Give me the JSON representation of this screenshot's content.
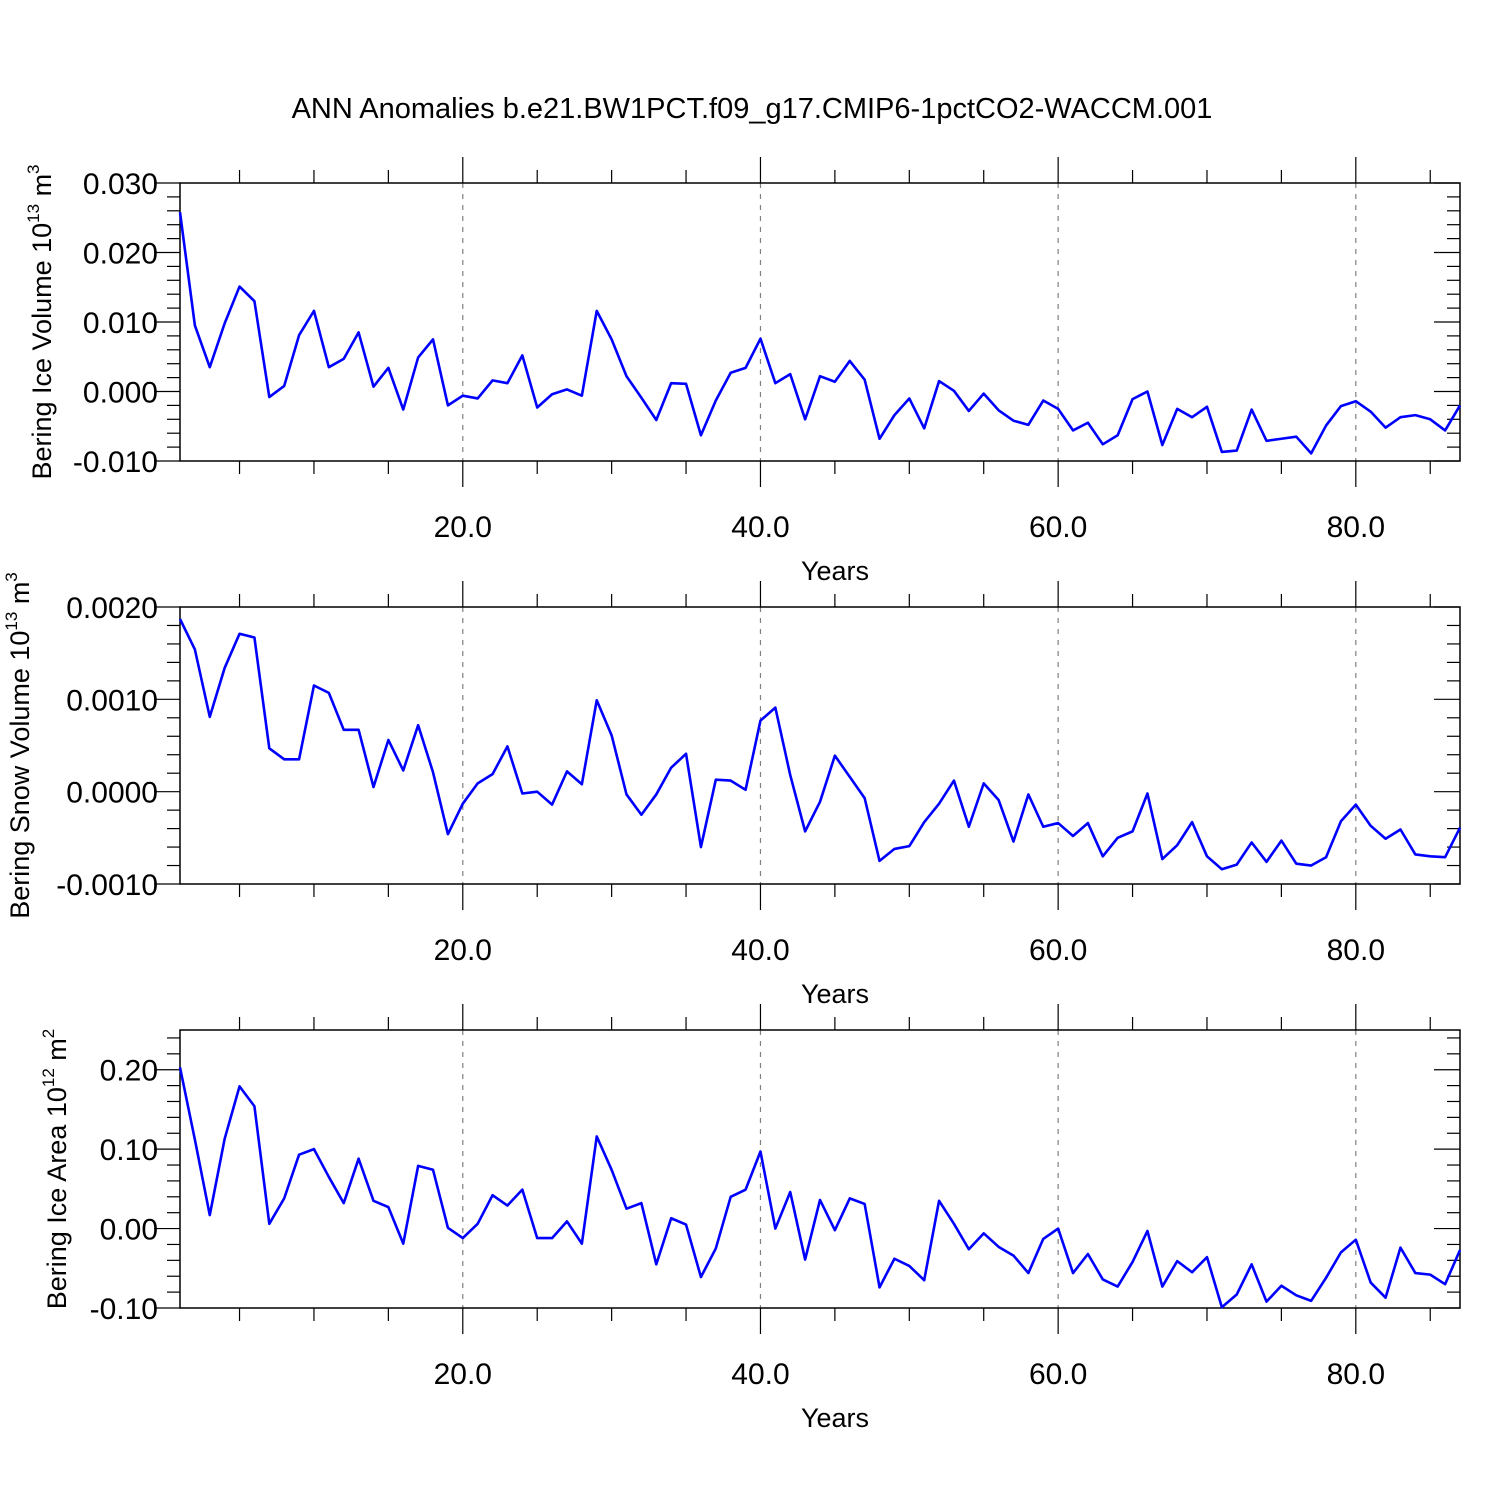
{
  "title": "ANN Anomalies b.e21.BW1PCT.f09_g17.CMIP6-1pctCO2-WACCM.001",
  "colors": {
    "line": "#0000ff",
    "axis": "#000000",
    "grid": "#808080"
  },
  "chart_data": [
    {
      "type": "line",
      "ylabel": {
        "text": "Bering Ice Volume 10",
        "sup": "13",
        "unit": " m",
        "unit_sup": "3"
      },
      "xlabel": "Years",
      "xlim": [
        1,
        87
      ],
      "ylim": [
        -0.01,
        0.03
      ],
      "grid": "vertical dashed at major x ticks",
      "x_ticks": [
        20,
        40,
        60,
        80
      ],
      "x_tick_labels": [
        "20.0",
        "40.0",
        "60.0",
        "80.0"
      ],
      "y_ticks": [
        -0.01,
        0,
        0.01,
        0.02,
        0.03
      ],
      "y_tick_labels": [
        "-0.010",
        "0.000",
        "0.010",
        "0.020",
        "0.030"
      ],
      "x_start": 1,
      "values": [
        0.0258,
        0.0095,
        0.0035,
        0.0098,
        0.0151,
        0.013,
        -0.0008,
        0.0008,
        0.0081,
        0.0116,
        0.0035,
        0.0047,
        0.0085,
        0.0007,
        0.0034,
        -0.0026,
        0.0049,
        0.0075,
        -0.002,
        -0.0006,
        -0.001,
        0.0016,
        0.0012,
        0.0052,
        -0.0023,
        -0.0004,
        0.0003,
        -0.0006,
        0.0116,
        0.0075,
        0.0022,
        -0.0009,
        -0.0041,
        0.0012,
        0.0011,
        -0.0063,
        -0.0013,
        0.0027,
        0.0034,
        0.0076,
        0.0012,
        0.0025,
        -0.004,
        0.0022,
        0.0014,
        0.0044,
        0.0017,
        -0.0068,
        -0.0034,
        -0.001,
        -0.0053,
        0.0015,
        0.0001,
        -0.0028,
        -0.0003,
        -0.0027,
        -0.0042,
        -0.0048,
        -0.0013,
        -0.0025,
        -0.0056,
        -0.0045,
        -0.0076,
        -0.0063,
        -0.0011,
        0.0,
        -0.0077,
        -0.0025,
        -0.0037,
        -0.0022,
        -0.0087,
        -0.0085,
        -0.0026,
        -0.0071,
        -0.0068,
        -0.0065,
        -0.0089,
        -0.0049,
        -0.0021,
        -0.0014,
        -0.0029,
        -0.0052,
        -0.0037,
        -0.0034,
        -0.004,
        -0.0056,
        -0.002
      ]
    },
    {
      "type": "line",
      "ylabel": {
        "text": "Bering Snow Volume 10",
        "sup": "13",
        "unit": " m",
        "unit_sup": "3"
      },
      "xlabel": "Years",
      "xlim": [
        1,
        87
      ],
      "ylim": [
        -0.001,
        0.002
      ],
      "grid": "vertical dashed at major x ticks",
      "x_ticks": [
        20,
        40,
        60,
        80
      ],
      "x_tick_labels": [
        "20.0",
        "40.0",
        "60.0",
        "80.0"
      ],
      "y_ticks": [
        -0.001,
        0,
        0.001,
        0.002
      ],
      "y_tick_labels": [
        "-0.0010",
        "0.0000",
        "0.0010",
        "0.0020"
      ],
      "x_start": 1,
      "values": [
        0.00187,
        0.00154,
        0.00081,
        0.00134,
        0.00171,
        0.00167,
        0.00047,
        0.00035,
        0.00035,
        0.00115,
        0.00107,
        0.00067,
        0.00067,
        5e-05,
        0.00056,
        0.00023,
        0.00072,
        0.00021,
        -0.00046,
        -0.00013,
        9e-05,
        0.00019,
        0.00049,
        -2e-05,
        0.0,
        -0.00014,
        0.00022,
        8e-05,
        0.00099,
        0.00061,
        -3e-05,
        -0.00025,
        -3e-05,
        0.00026,
        0.00041,
        -0.0006,
        0.00013,
        0.00012,
        2e-05,
        0.00077,
        0.00091,
        0.00018,
        -0.00043,
        -0.00011,
        0.00039,
        0.00016,
        -7e-05,
        -0.00075,
        -0.00062,
        -0.00059,
        -0.00033,
        -0.00013,
        0.00012,
        -0.00038,
        9e-05,
        -9e-05,
        -0.00054,
        -3e-05,
        -0.00038,
        -0.00034,
        -0.00048,
        -0.00034,
        -0.0007,
        -0.0005,
        -0.00043,
        -2e-05,
        -0.00073,
        -0.00058,
        -0.00033,
        -0.0007,
        -0.00084,
        -0.00079,
        -0.00055,
        -0.00076,
        -0.00053,
        -0.00078,
        -0.0008,
        -0.00071,
        -0.00032,
        -0.00014,
        -0.00037,
        -0.00051,
        -0.00041,
        -0.00068,
        -0.0007,
        -0.00071,
        -0.00039
      ]
    },
    {
      "type": "line",
      "ylabel": {
        "text": "Bering Ice Area 10",
        "sup": "12",
        "unit": " m",
        "unit_sup": "2"
      },
      "xlabel": "Years",
      "xlim": [
        1,
        87
      ],
      "ylim": [
        -0.1,
        0.25
      ],
      "grid": "vertical dashed at major x ticks",
      "x_ticks": [
        20,
        40,
        60,
        80
      ],
      "x_tick_labels": [
        "20.0",
        "40.0",
        "60.0",
        "80.0"
      ],
      "y_ticks": [
        -0.1,
        0,
        0.1,
        0.2
      ],
      "y_tick_labels": [
        "-0.10",
        "0.00",
        "0.10",
        "0.20"
      ],
      "x_start": 1,
      "values": [
        0.203,
        0.112,
        0.017,
        0.113,
        0.179,
        0.154,
        0.006,
        0.038,
        0.093,
        0.1,
        0.065,
        0.032,
        0.088,
        0.035,
        0.027,
        -0.019,
        0.079,
        0.074,
        0.001,
        -0.012,
        0.006,
        0.042,
        0.029,
        0.049,
        -0.012,
        -0.012,
        0.009,
        -0.019,
        0.116,
        0.074,
        0.025,
        0.032,
        -0.045,
        0.013,
        0.005,
        -0.061,
        -0.025,
        0.04,
        0.049,
        0.097,
        0.0,
        0.046,
        -0.039,
        0.036,
        -0.002,
        0.038,
        0.031,
        -0.074,
        -0.038,
        -0.047,
        -0.065,
        0.035,
        0.006,
        -0.026,
        -0.006,
        -0.023,
        -0.034,
        -0.056,
        -0.013,
        0.0,
        -0.056,
        -0.032,
        -0.064,
        -0.073,
        -0.042,
        -0.003,
        -0.073,
        -0.041,
        -0.055,
        -0.036,
        -0.099,
        -0.083,
        -0.045,
        -0.092,
        -0.072,
        -0.084,
        -0.091,
        -0.062,
        -0.03,
        -0.014,
        -0.068,
        -0.087,
        -0.024,
        -0.056,
        -0.058,
        -0.07,
        -0.027
      ]
    }
  ]
}
